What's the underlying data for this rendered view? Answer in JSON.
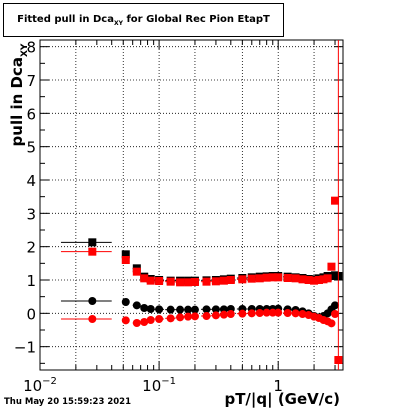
{
  "title": {
    "prefix": "Fitted pull in Dca",
    "subscript": "XY",
    "suffix": " for Global Rec Pion EtapT"
  },
  "footer": {
    "timestamp": "Thu May 20 15:59:23 2021"
  },
  "colors": {
    "black_series": "#000000",
    "red_series": "#ff0000",
    "grid": "#000000"
  },
  "chart_data": {
    "type": "scatter",
    "title": "Fitted pull in Dca_XY for Global Rec Pion EtapT",
    "xlabel": "pT/|q| (GeV/c)",
    "ylabel": "pull in Dca_XY",
    "xscale": "log",
    "xlim": [
      0.01,
      3.5
    ],
    "ylim": [
      -1.7,
      8.2
    ],
    "grid": true,
    "x_ticks": [
      {
        "v": 0.01,
        "label": "10",
        "sup": "-2"
      },
      {
        "v": 0.1,
        "label": "10",
        "sup": "-1"
      },
      {
        "v": 1,
        "label": "1",
        "sup": ""
      }
    ],
    "y_ticks": [
      -1,
      0,
      1,
      2,
      3,
      4,
      5,
      6,
      7,
      8
    ],
    "series": [
      {
        "marker": "square",
        "color": "#000000",
        "x": [
          0.0275,
          0.0525,
          0.065,
          0.075,
          0.085,
          0.1,
          0.125,
          0.15,
          0.175,
          0.2,
          0.25,
          0.3,
          0.35,
          0.4,
          0.5,
          0.6,
          0.7,
          0.8,
          0.9,
          1.0,
          1.2,
          1.4,
          1.6,
          1.8,
          2.0,
          2.2,
          2.4,
          2.6,
          2.8,
          3.0,
          3.2
        ],
        "y": [
          2.13,
          1.77,
          1.35,
          1.1,
          1.03,
          1.0,
          0.98,
          0.98,
          0.98,
          0.98,
          0.99,
          1.0,
          1.02,
          1.04,
          1.06,
          1.08,
          1.1,
          1.11,
          1.12,
          1.12,
          1.1,
          1.08,
          1.06,
          1.03,
          1.02,
          1.05,
          1.08,
          1.12,
          1.12,
          1.14,
          1.12
        ],
        "xerr": [
          0.0125,
          0.0025,
          0.005,
          0.005,
          0.005,
          0.01,
          0.0125,
          0.0125,
          0.0125,
          0.0125,
          0.025,
          0.025,
          0.025,
          0.025,
          0.05,
          0.05,
          0.05,
          0.05,
          0.05,
          0.05,
          0.1,
          0.1,
          0.1,
          0.1,
          0.1,
          0.1,
          0.1,
          0.1,
          0.1,
          0.1,
          0.1
        ]
      },
      {
        "marker": "square",
        "color": "#ff0000",
        "x": [
          0.0275,
          0.0525,
          0.065,
          0.075,
          0.085,
          0.1,
          0.125,
          0.15,
          0.175,
          0.2,
          0.25,
          0.3,
          0.35,
          0.4,
          0.5,
          0.6,
          0.7,
          0.8,
          0.9,
          1.0,
          1.2,
          1.4,
          1.6,
          1.8,
          2.0,
          2.2,
          2.4,
          2.6,
          2.8,
          3.0,
          3.2
        ],
        "y": [
          1.85,
          1.6,
          1.25,
          1.05,
          0.98,
          0.97,
          0.95,
          0.93,
          0.93,
          0.94,
          0.95,
          0.96,
          0.98,
          1.0,
          1.02,
          1.04,
          1.05,
          1.07,
          1.08,
          1.08,
          1.06,
          1.05,
          1.02,
          1.0,
          0.98,
          1.0,
          1.02,
          1.05,
          1.4,
          3.38,
          -1.4
        ],
        "xerr": [
          0.0125,
          0.0025,
          0.005,
          0.005,
          0.005,
          0.01,
          0.0125,
          0.0125,
          0.0125,
          0.0125,
          0.025,
          0.025,
          0.025,
          0.025,
          0.05,
          0.05,
          0.05,
          0.05,
          0.05,
          0.05,
          0.1,
          0.1,
          0.1,
          0.1,
          0.1,
          0.1,
          0.1,
          0.1,
          0.1,
          0.1,
          0.1
        ]
      },
      {
        "marker": "circle",
        "color": "#000000",
        "x": [
          0.0275,
          0.0525,
          0.065,
          0.075,
          0.085,
          0.1,
          0.125,
          0.15,
          0.175,
          0.2,
          0.25,
          0.3,
          0.35,
          0.4,
          0.5,
          0.6,
          0.7,
          0.8,
          0.9,
          1.0,
          1.2,
          1.4,
          1.6,
          1.8,
          2.0,
          2.2,
          2.4,
          2.6,
          2.8,
          3.0
        ],
        "y": [
          0.37,
          0.34,
          0.24,
          0.16,
          0.13,
          0.12,
          0.11,
          0.11,
          0.11,
          0.11,
          0.12,
          0.12,
          0.12,
          0.13,
          0.13,
          0.13,
          0.13,
          0.13,
          0.13,
          0.14,
          0.12,
          0.1,
          0.06,
          0.0,
          -0.08,
          -0.12,
          -0.08,
          0.0,
          0.12,
          0.24
        ],
        "xerr": [
          0.0125,
          0.0025,
          0.005,
          0.005,
          0.005,
          0.01,
          0.0125,
          0.0125,
          0.0125,
          0.0125,
          0.025,
          0.025,
          0.025,
          0.025,
          0.05,
          0.05,
          0.05,
          0.05,
          0.05,
          0.05,
          0.1,
          0.1,
          0.1,
          0.1,
          0.1,
          0.1,
          0.1,
          0.1,
          0.1,
          0.1
        ]
      },
      {
        "marker": "circle",
        "color": "#ff0000",
        "x": [
          0.0275,
          0.0525,
          0.065,
          0.075,
          0.085,
          0.1,
          0.125,
          0.15,
          0.175,
          0.2,
          0.25,
          0.3,
          0.35,
          0.4,
          0.5,
          0.6,
          0.7,
          0.8,
          0.9,
          1.0,
          1.2,
          1.4,
          1.6,
          1.8,
          2.0,
          2.2,
          2.4,
          2.6,
          2.8,
          3.0
        ],
        "y": [
          -0.17,
          -0.21,
          -0.29,
          -0.26,
          -0.2,
          -0.17,
          -0.15,
          -0.12,
          -0.1,
          -0.09,
          -0.08,
          -0.06,
          -0.04,
          -0.02,
          -0.01,
          0.0,
          0.01,
          0.02,
          0.02,
          0.02,
          0.01,
          0.0,
          -0.02,
          -0.05,
          -0.1,
          -0.14,
          -0.2,
          -0.24,
          -0.3,
          -0.02
        ],
        "xerr": [
          0.0125,
          0.0025,
          0.005,
          0.005,
          0.005,
          0.01,
          0.0125,
          0.0125,
          0.0125,
          0.0125,
          0.025,
          0.025,
          0.025,
          0.025,
          0.05,
          0.05,
          0.05,
          0.05,
          0.05,
          0.05,
          0.1,
          0.1,
          0.1,
          0.1,
          0.1,
          0.1,
          0.1,
          0.1,
          0.1,
          0.1
        ]
      }
    ]
  }
}
